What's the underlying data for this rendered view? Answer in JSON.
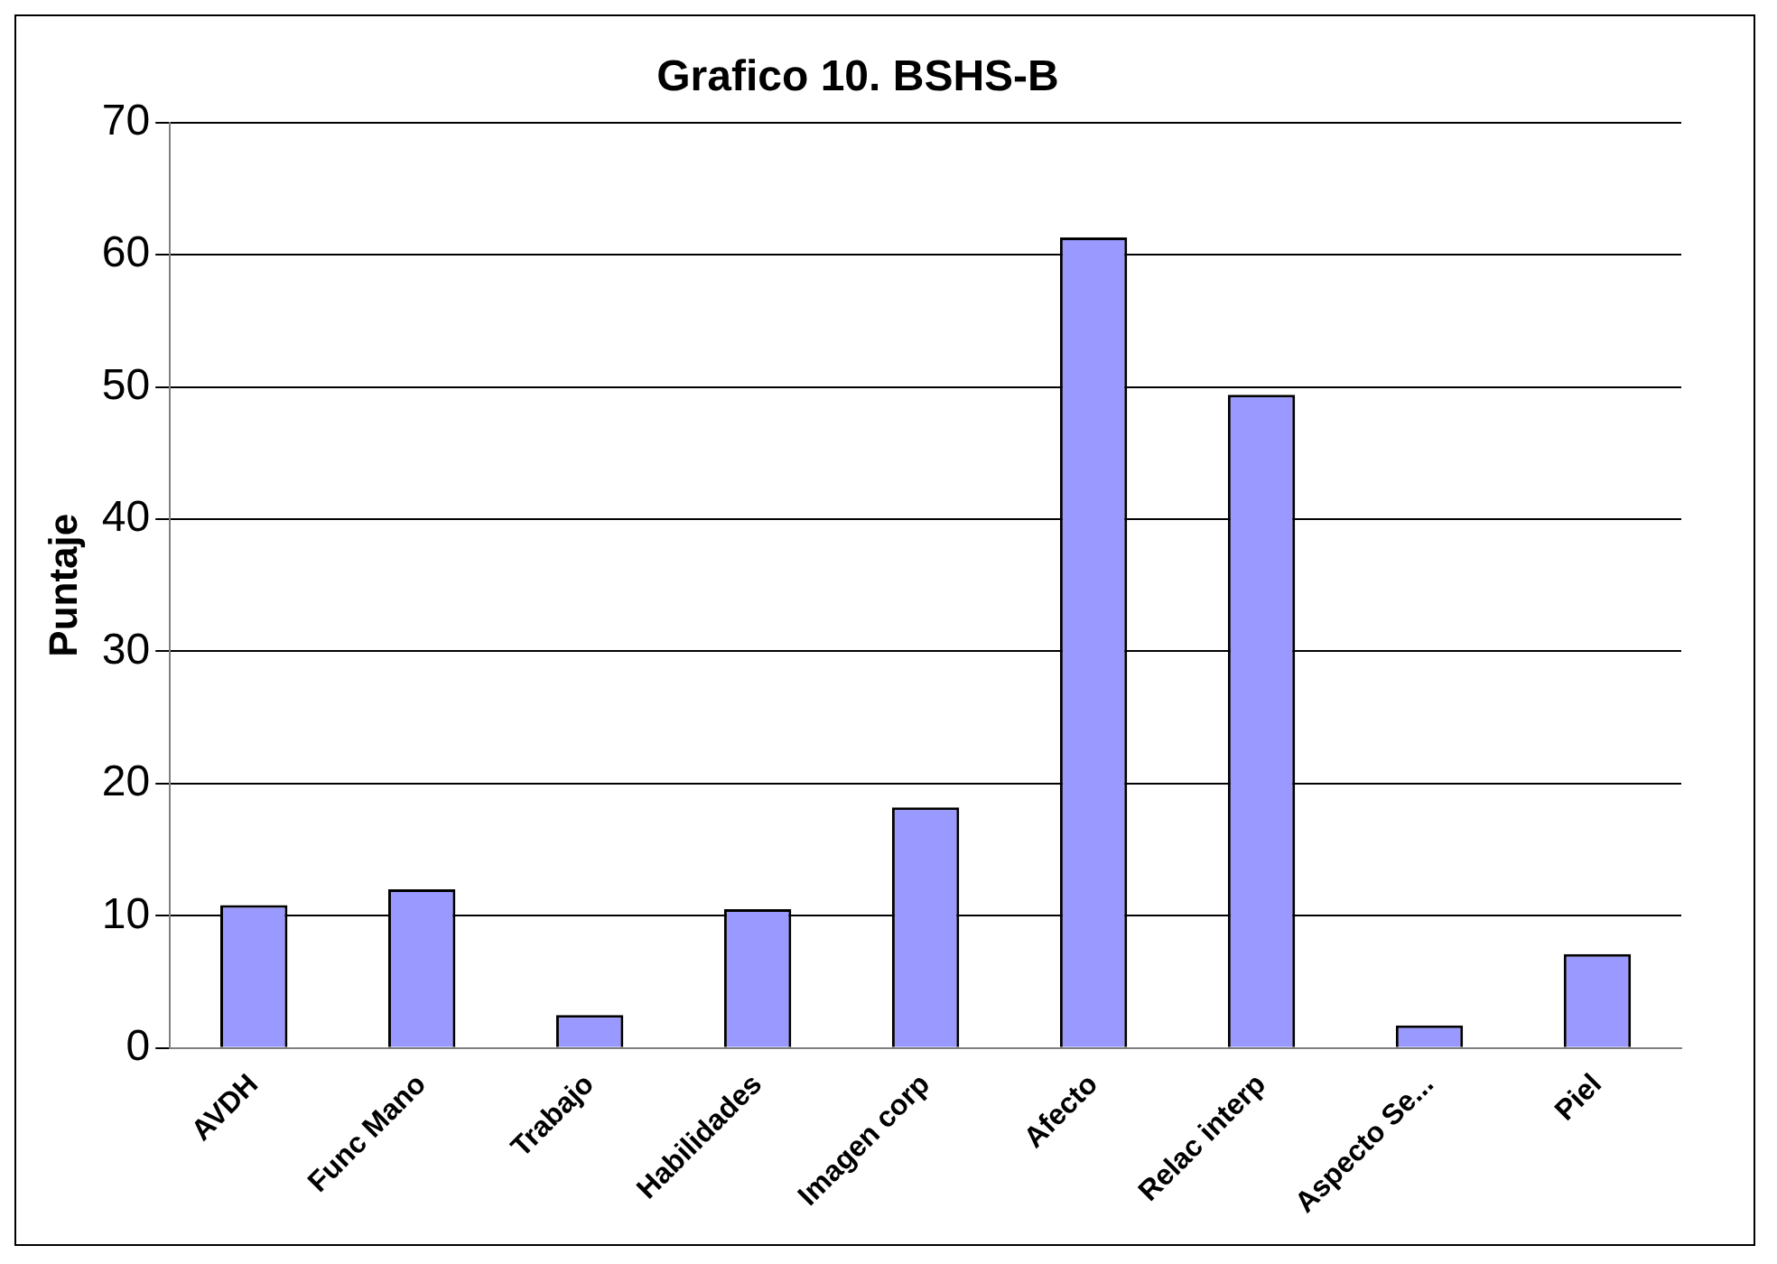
{
  "chart_data": {
    "type": "bar",
    "title": "Grafico 10. BSHS-B",
    "ylabel": "Puntaje",
    "categories": [
      "AVDH",
      "Func Mano",
      "Trabajo",
      "Habilidades",
      "Imagen corp",
      "Afecto",
      "Relac interp",
      "Aspecto Se...",
      "Piel"
    ],
    "values": [
      10.8,
      12,
      2.5,
      10.5,
      18.2,
      61.3,
      49.4,
      1.7,
      7.1
    ],
    "color": "#9999ff",
    "ylim": [
      0,
      70
    ],
    "yticks": [
      0,
      10,
      20,
      30,
      40,
      50,
      60,
      70
    ],
    "grid": "y",
    "legend": false
  }
}
